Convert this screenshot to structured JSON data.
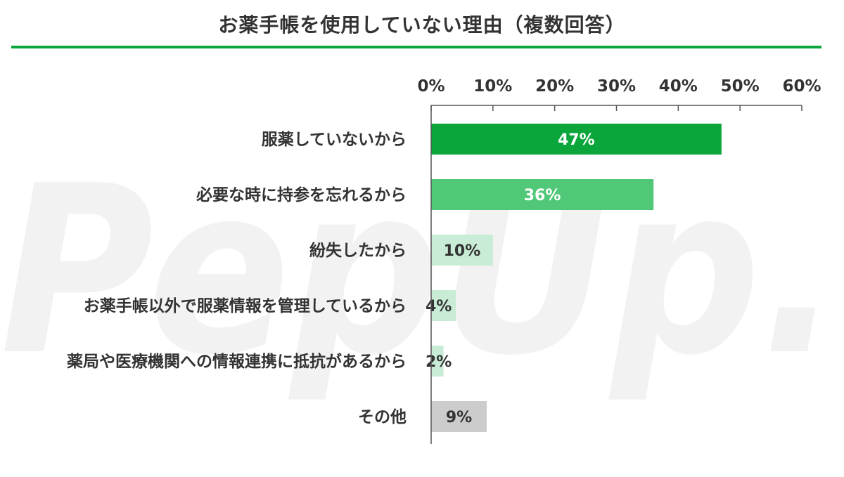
{
  "chart_data": {
    "type": "bar",
    "orientation": "horizontal",
    "title": "お薬手帳を使用していない理由（複数回答）",
    "xlabel": "",
    "ylabel": "",
    "xlim": [
      0,
      60
    ],
    "x_ticks": [
      "0%",
      "10%",
      "20%",
      "30%",
      "40%",
      "50%",
      "60%"
    ],
    "x_tick_values": [
      0,
      10,
      20,
      30,
      40,
      50,
      60
    ],
    "grid": false,
    "legend": "none",
    "categories": [
      "服薬していないから",
      "必要な時に持参を忘れるから",
      "紛失したから",
      "お薬手帳以外で服薬情報を管理しているから",
      "薬局や医療機関への情報連携に抵抗があるから",
      "その他"
    ],
    "values": [
      47,
      36,
      10,
      4,
      2,
      9
    ],
    "value_labels": [
      "47%",
      "36%",
      "10%",
      "4%",
      "2%",
      "9%"
    ],
    "bar_colors": [
      "#0aa63c",
      "#50c878",
      "#c8ecd5",
      "#c8ecd5",
      "#c8ecd5",
      "#cccccc"
    ],
    "label_colors": [
      "#ffffff",
      "#ffffff",
      "#333333",
      "#333333",
      "#333333",
      "#333333"
    ]
  },
  "watermark": "PepUp."
}
